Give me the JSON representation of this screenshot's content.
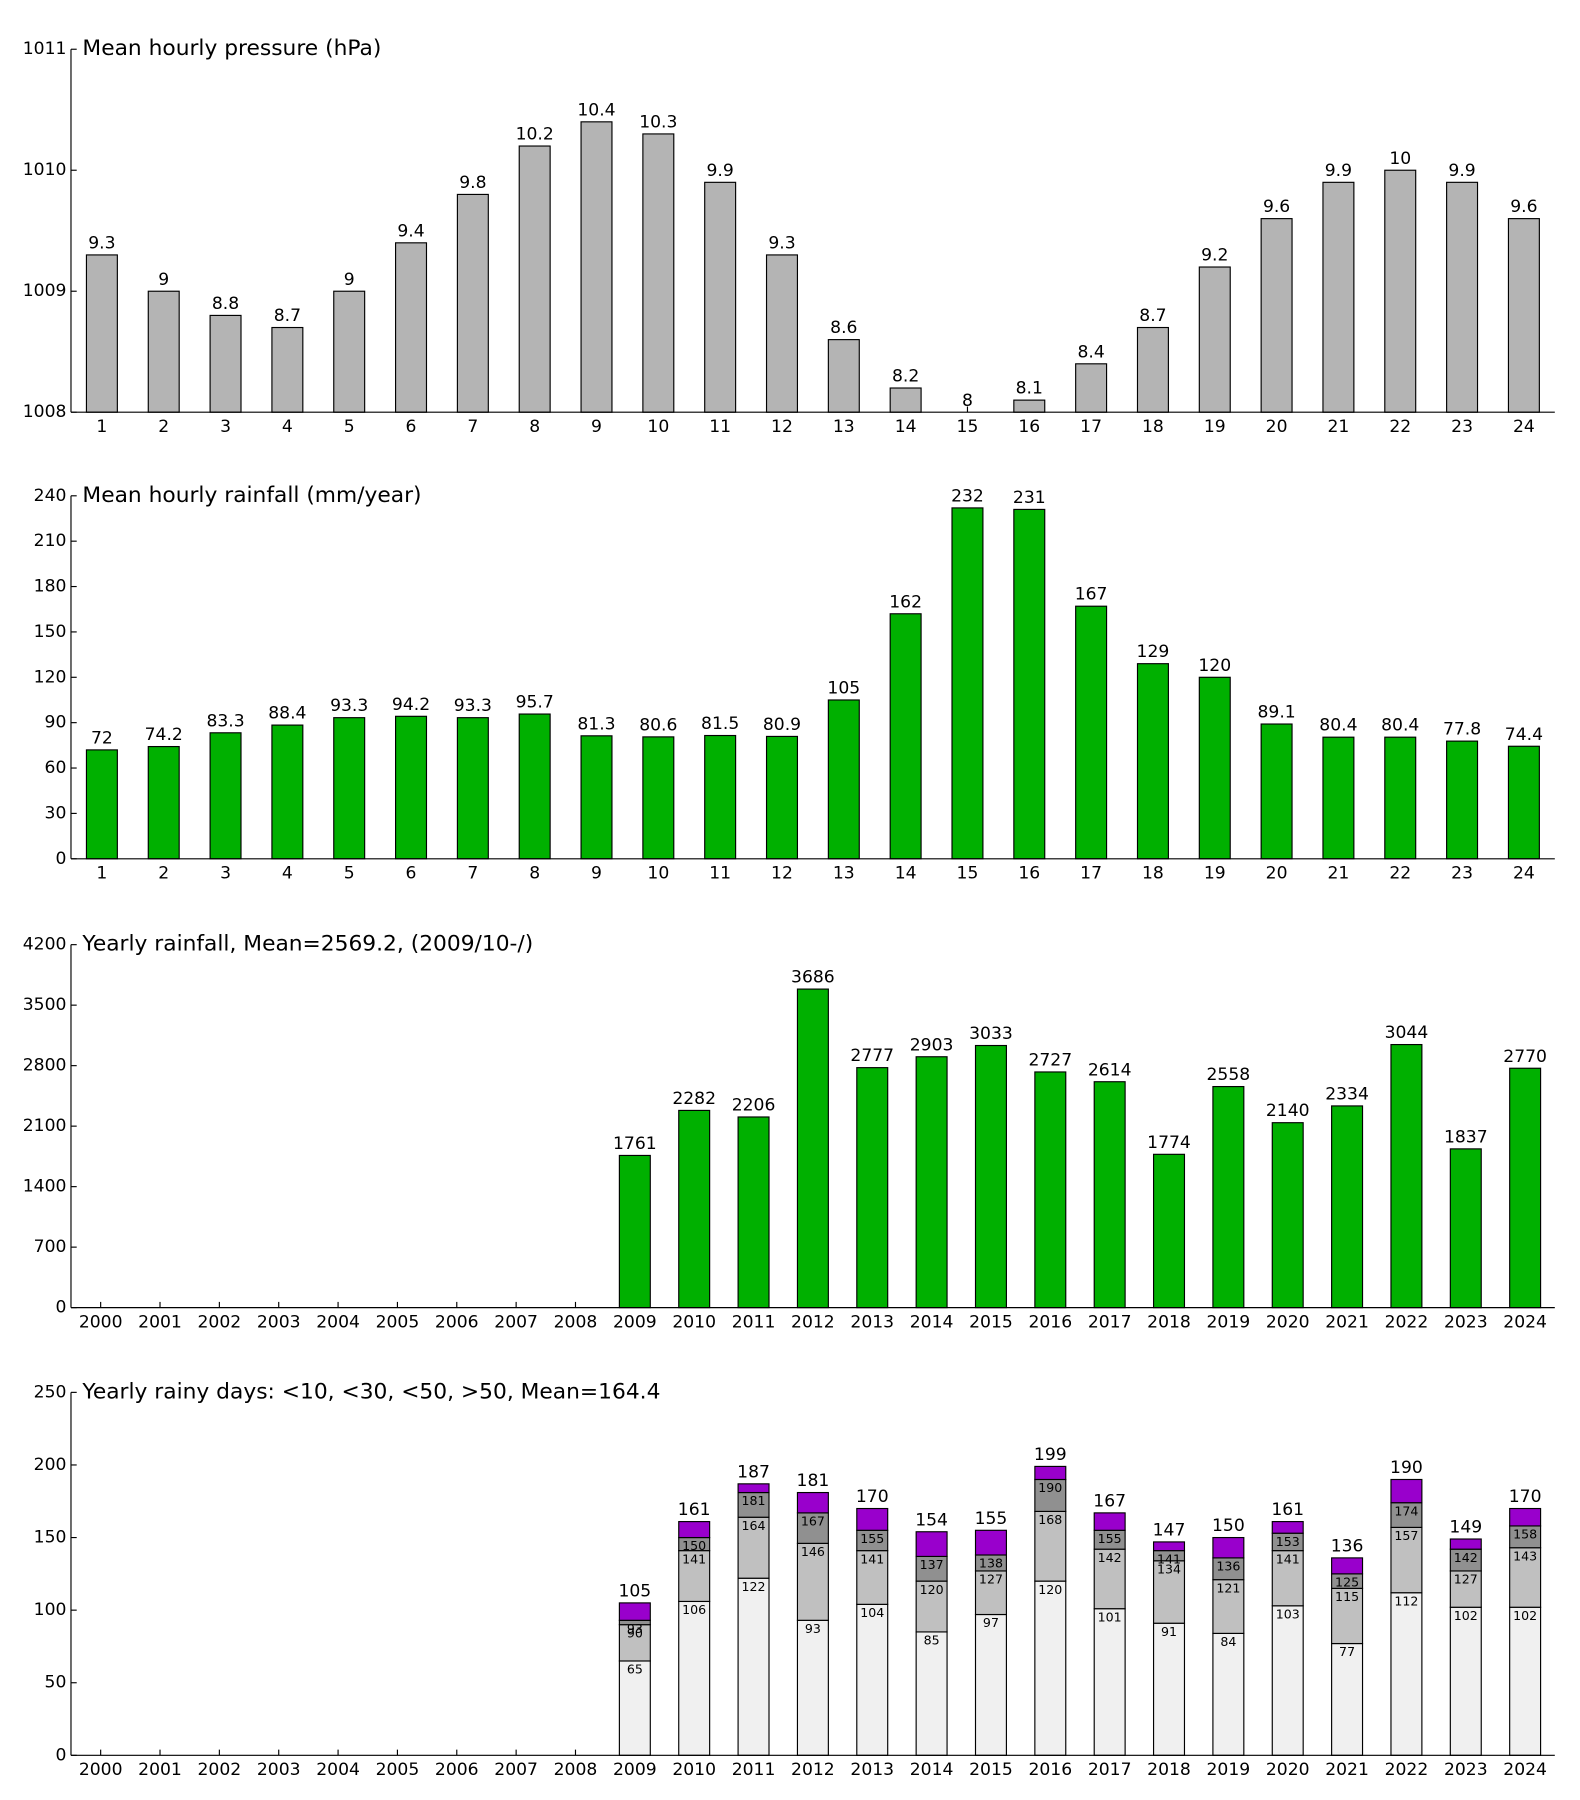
{
  "chart_data": [
    {
      "type": "bar",
      "title": "Mean hourly pressure (hPa)",
      "categories": [
        "1",
        "2",
        "3",
        "4",
        "5",
        "6",
        "7",
        "8",
        "9",
        "10",
        "11",
        "12",
        "13",
        "14",
        "15",
        "16",
        "17",
        "18",
        "19",
        "20",
        "21",
        "22",
        "23",
        "24"
      ],
      "values": [
        1009.3,
        1009.0,
        1008.8,
        1008.7,
        1009.0,
        1009.4,
        1009.8,
        1010.2,
        1010.4,
        1010.3,
        1009.9,
        1009.3,
        1008.6,
        1008.2,
        1008.0,
        1008.1,
        1008.4,
        1008.7,
        1009.2,
        1009.6,
        1009.9,
        1010.0,
        1009.9,
        1009.6
      ],
      "value_labels": [
        "9.3",
        "9",
        "8.8",
        "8.7",
        "9",
        "9.4",
        "9.8",
        "10.2",
        "10.4",
        "10.3",
        "9.9",
        "9.3",
        "8.6",
        "8.2",
        "8",
        "8.1",
        "8.4",
        "8.7",
        "9.2",
        "9.6",
        "9.9",
        "10",
        "9.9",
        "9.6"
      ],
      "color": "#b4b4b4",
      "ylim": [
        1008,
        1011
      ],
      "yticks": [
        1008,
        1009,
        1010,
        1011
      ]
    },
    {
      "type": "bar",
      "title": "Mean hourly rainfall (mm/year)",
      "categories": [
        "1",
        "2",
        "3",
        "4",
        "5",
        "6",
        "7",
        "8",
        "9",
        "10",
        "11",
        "12",
        "13",
        "14",
        "15",
        "16",
        "17",
        "18",
        "19",
        "20",
        "21",
        "22",
        "23",
        "24"
      ],
      "values": [
        72,
        74.2,
        83.3,
        88.4,
        93.3,
        94.2,
        93.3,
        95.7,
        81.3,
        80.6,
        81.5,
        80.9,
        105,
        162,
        232,
        231,
        167,
        129,
        120,
        89.1,
        80.4,
        80.4,
        77.8,
        74.4
      ],
      "color": "#00b000",
      "ylim": [
        0,
        240
      ],
      "yticks": [
        0,
        30,
        60,
        90,
        120,
        150,
        180,
        210,
        240
      ]
    },
    {
      "type": "bar",
      "title": "Yearly rainfall, Mean=2569.2, (2009/10-/)",
      "categories": [
        "2000",
        "2001",
        "2002",
        "2003",
        "2004",
        "2005",
        "2006",
        "2007",
        "2008",
        "2009",
        "2010",
        "2011",
        "2012",
        "2013",
        "2014",
        "2015",
        "2016",
        "2017",
        "2018",
        "2019",
        "2020",
        "2021",
        "2022",
        "2023",
        "2024"
      ],
      "values": [
        null,
        null,
        null,
        null,
        null,
        null,
        null,
        null,
        null,
        1761,
        2282,
        2206,
        3686,
        2777,
        2903,
        3033,
        2727,
        2614,
        1774,
        2558,
        2140,
        2334,
        3044,
        1837,
        2770
      ],
      "color": "#00b000",
      "ylim": [
        0,
        4200
      ],
      "yticks": [
        0,
        700,
        1400,
        2100,
        2800,
        3500,
        4200
      ]
    },
    {
      "type": "stacked_bar",
      "title": "Yearly rainy days: <10, <30, <50, >50, Mean=164.4",
      "categories": [
        "2000",
        "2001",
        "2002",
        "2003",
        "2004",
        "2005",
        "2006",
        "2007",
        "2008",
        "2009",
        "2010",
        "2011",
        "2012",
        "2013",
        "2014",
        "2015",
        "2016",
        "2017",
        "2018",
        "2019",
        "2020",
        "2021",
        "2022",
        "2023",
        "2024"
      ],
      "series": [
        {
          "color": "#f0f0f0",
          "values": [
            null,
            null,
            null,
            null,
            null,
            null,
            null,
            null,
            null,
            65,
            106,
            122,
            93,
            104,
            85,
            97,
            120,
            101,
            91,
            84,
            103,
            77,
            112,
            102,
            102
          ],
          "labels": [
            null,
            null,
            null,
            null,
            null,
            null,
            null,
            null,
            null,
            "65",
            "106",
            "122",
            "93",
            "104",
            "85",
            "97",
            "120",
            "101",
            "91",
            "84",
            "103",
            "77",
            "112",
            "102",
            "102"
          ]
        },
        {
          "color": "#c0c0c0",
          "values": [
            null,
            null,
            null,
            null,
            null,
            null,
            null,
            null,
            null,
            25,
            35,
            42,
            53,
            37,
            35,
            30,
            48,
            41,
            43,
            37,
            38,
            38,
            45,
            25,
            41
          ],
          "labels": [
            null,
            null,
            null,
            null,
            null,
            null,
            null,
            null,
            null,
            "90",
            "141",
            "164",
            "146",
            "141",
            "120",
            "127",
            "168",
            "142",
            "134",
            "121",
            "141",
            "115",
            "157",
            "127",
            "143"
          ]
        },
        {
          "color": "#909090",
          "values": [
            null,
            null,
            null,
            null,
            null,
            null,
            null,
            null,
            null,
            3,
            9,
            17,
            21,
            14,
            17,
            11,
            22,
            13,
            7,
            15,
            12,
            10,
            17,
            15,
            15
          ],
          "labels": [
            null,
            null,
            null,
            null,
            null,
            null,
            null,
            null,
            null,
            "93",
            "150",
            "181",
            "167",
            "155",
            "137",
            "138",
            "190",
            "155",
            "141",
            "136",
            "153",
            "125",
            "174",
            "142",
            "158"
          ]
        },
        {
          "color": "#9900cc",
          "values": [
            null,
            null,
            null,
            null,
            null,
            null,
            null,
            null,
            null,
            12,
            11,
            6,
            14,
            15,
            17,
            17,
            9,
            12,
            6,
            14,
            8,
            11,
            16,
            7,
            12
          ],
          "labels": [
            null,
            null,
            null,
            null,
            null,
            null,
            null,
            null,
            null,
            "105",
            "161",
            "187",
            "181",
            "170",
            "154",
            "155",
            "199",
            "167",
            "147",
            "150",
            "161",
            "136",
            "190",
            "149",
            "170"
          ]
        }
      ],
      "ylim": [
        0,
        250
      ],
      "yticks": [
        0,
        50,
        100,
        150,
        200,
        250
      ]
    }
  ]
}
